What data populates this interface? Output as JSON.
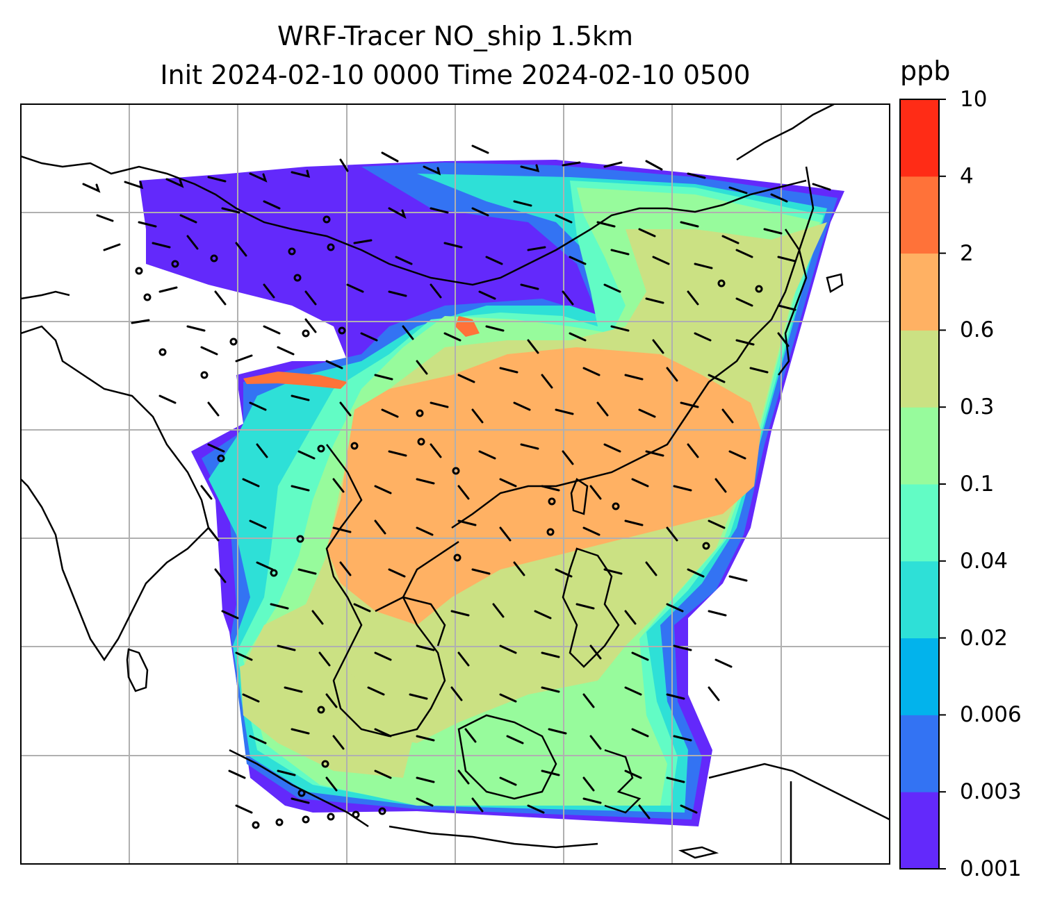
{
  "title_line1": "WRF-Tracer NO_ship 1.5km",
  "title_line2": "Init 2024-02-10 0000 Time 2024-02-10 0500",
  "colorbar": {
    "unit": "ppb",
    "levels": [
      "0.001",
      "0.003",
      "0.006",
      "0.02",
      "0.04",
      "0.1",
      "0.3",
      "0.6",
      "2",
      "4",
      "10"
    ],
    "colors": [
      "#6329fb",
      "#3373f3",
      "#02b3ec",
      "#2ee0d7",
      "#62fcc5",
      "#97fb9c",
      "#cbe183",
      "#ffb163",
      "#ff7239",
      "#ff2c16"
    ]
  },
  "map": {
    "land_line_color": "#000000",
    "grid_color": "#b0b0b0",
    "wind_barbs": true,
    "gridlines": true
  }
}
